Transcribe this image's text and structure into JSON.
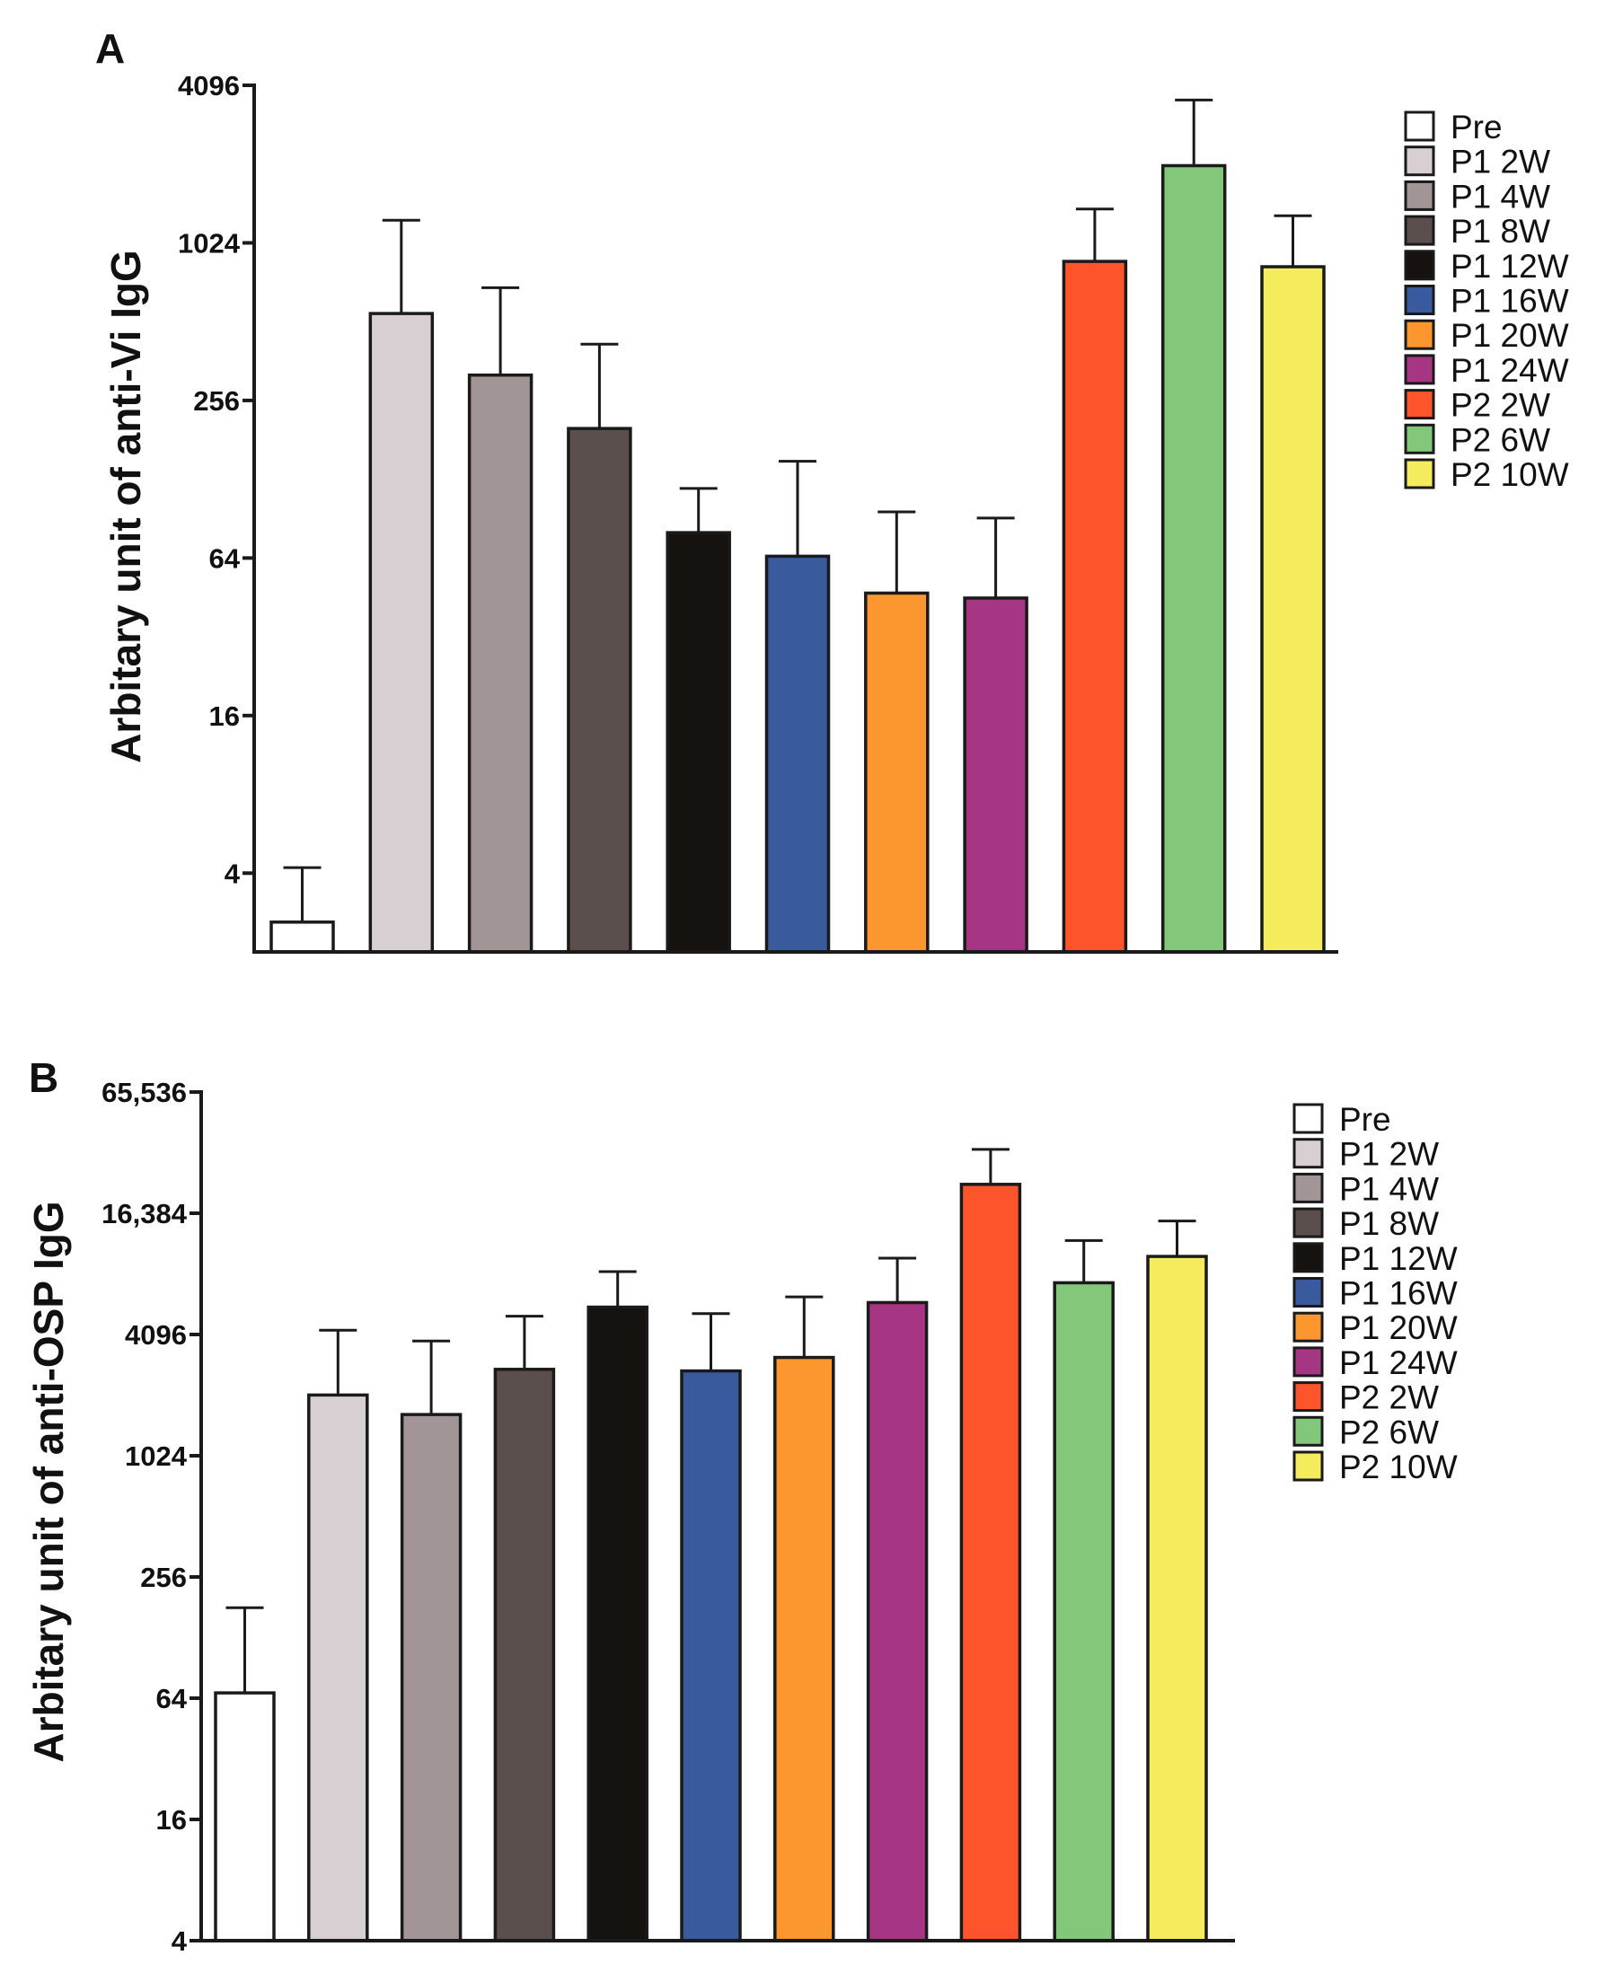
{
  "figure": {
    "colors": [
      "#ffffff",
      "#d7cfd2",
      "#a29596",
      "#5b4f4e",
      "#16120f",
      "#3a5a9e",
      "#fc9730",
      "#a63583",
      "#fe542c",
      "#83c77a",
      "#f5ec5d"
    ]
  },
  "chart_data": [
    {
      "type": "bar",
      "panel_label": "A",
      "title": "",
      "xlabel": "",
      "ylabel": "Arbitary unit of anti-Vi IgG",
      "yscale": "log2",
      "ylim": [
        2,
        4096
      ],
      "yticks": [
        4,
        16,
        64,
        256,
        1024,
        4096
      ],
      "ytick_labels": [
        "4",
        "16",
        "64",
        "256",
        "1024",
        "4096"
      ],
      "categories": [
        "Pre",
        "P1 2W",
        "P1 4W",
        "P1 8W",
        "P1 12W",
        "P1 16W",
        "P1 20W",
        "P1 24W",
        "P2 2W",
        "P2 6W",
        "P2 10W"
      ],
      "values": [
        2.6,
        550,
        320,
        200,
        80,
        65,
        47,
        45,
        870,
        2020,
        830
      ],
      "error_upper": [
        4.2,
        1250,
        690,
        420,
        118,
        150,
        96,
        91,
        1380,
        3600,
        1300
      ],
      "legend": [
        "Pre",
        "P1 2W",
        "P1 4W",
        "P1 8W",
        "P1 12W",
        "P1 16W",
        "P1 20W",
        "P1 24W",
        "P2 2W",
        "P2 6W",
        "P2 10W"
      ],
      "legend_position": "right"
    },
    {
      "type": "bar",
      "panel_label": "B",
      "title": "",
      "xlabel": "",
      "ylabel": "Arbitary unit of anti-OSP IgG",
      "yscale": "log2",
      "ylim": [
        4,
        65536
      ],
      "yticks": [
        4,
        16,
        64,
        256,
        1024,
        4096,
        16384,
        65536
      ],
      "ytick_labels": [
        "4",
        "16",
        "64",
        "256",
        "1024",
        "4096",
        "16,384",
        "65,536"
      ],
      "categories": [
        "Pre",
        "P1 2W",
        "P1 4W",
        "P1 8W",
        "P1 12W",
        "P1 16W",
        "P1 20W",
        "P1 24W",
        "P2 2W",
        "P2 6W",
        "P2 10W"
      ],
      "values": [
        68,
        2050,
        1640,
        2750,
        5600,
        2700,
        3150,
        5900,
        22800,
        7400,
        10000
      ],
      "error_upper": [
        180,
        4300,
        3800,
        5050,
        8400,
        5200,
        6300,
        9800,
        34000,
        12000,
        15000
      ],
      "legend": [
        "Pre",
        "P1 2W",
        "P1 4W",
        "P1 8W",
        "P1 12W",
        "P1 16W",
        "P1 20W",
        "P1 24W",
        "P2 2W",
        "P2 6W",
        "P2 10W"
      ],
      "legend_position": "right"
    }
  ]
}
